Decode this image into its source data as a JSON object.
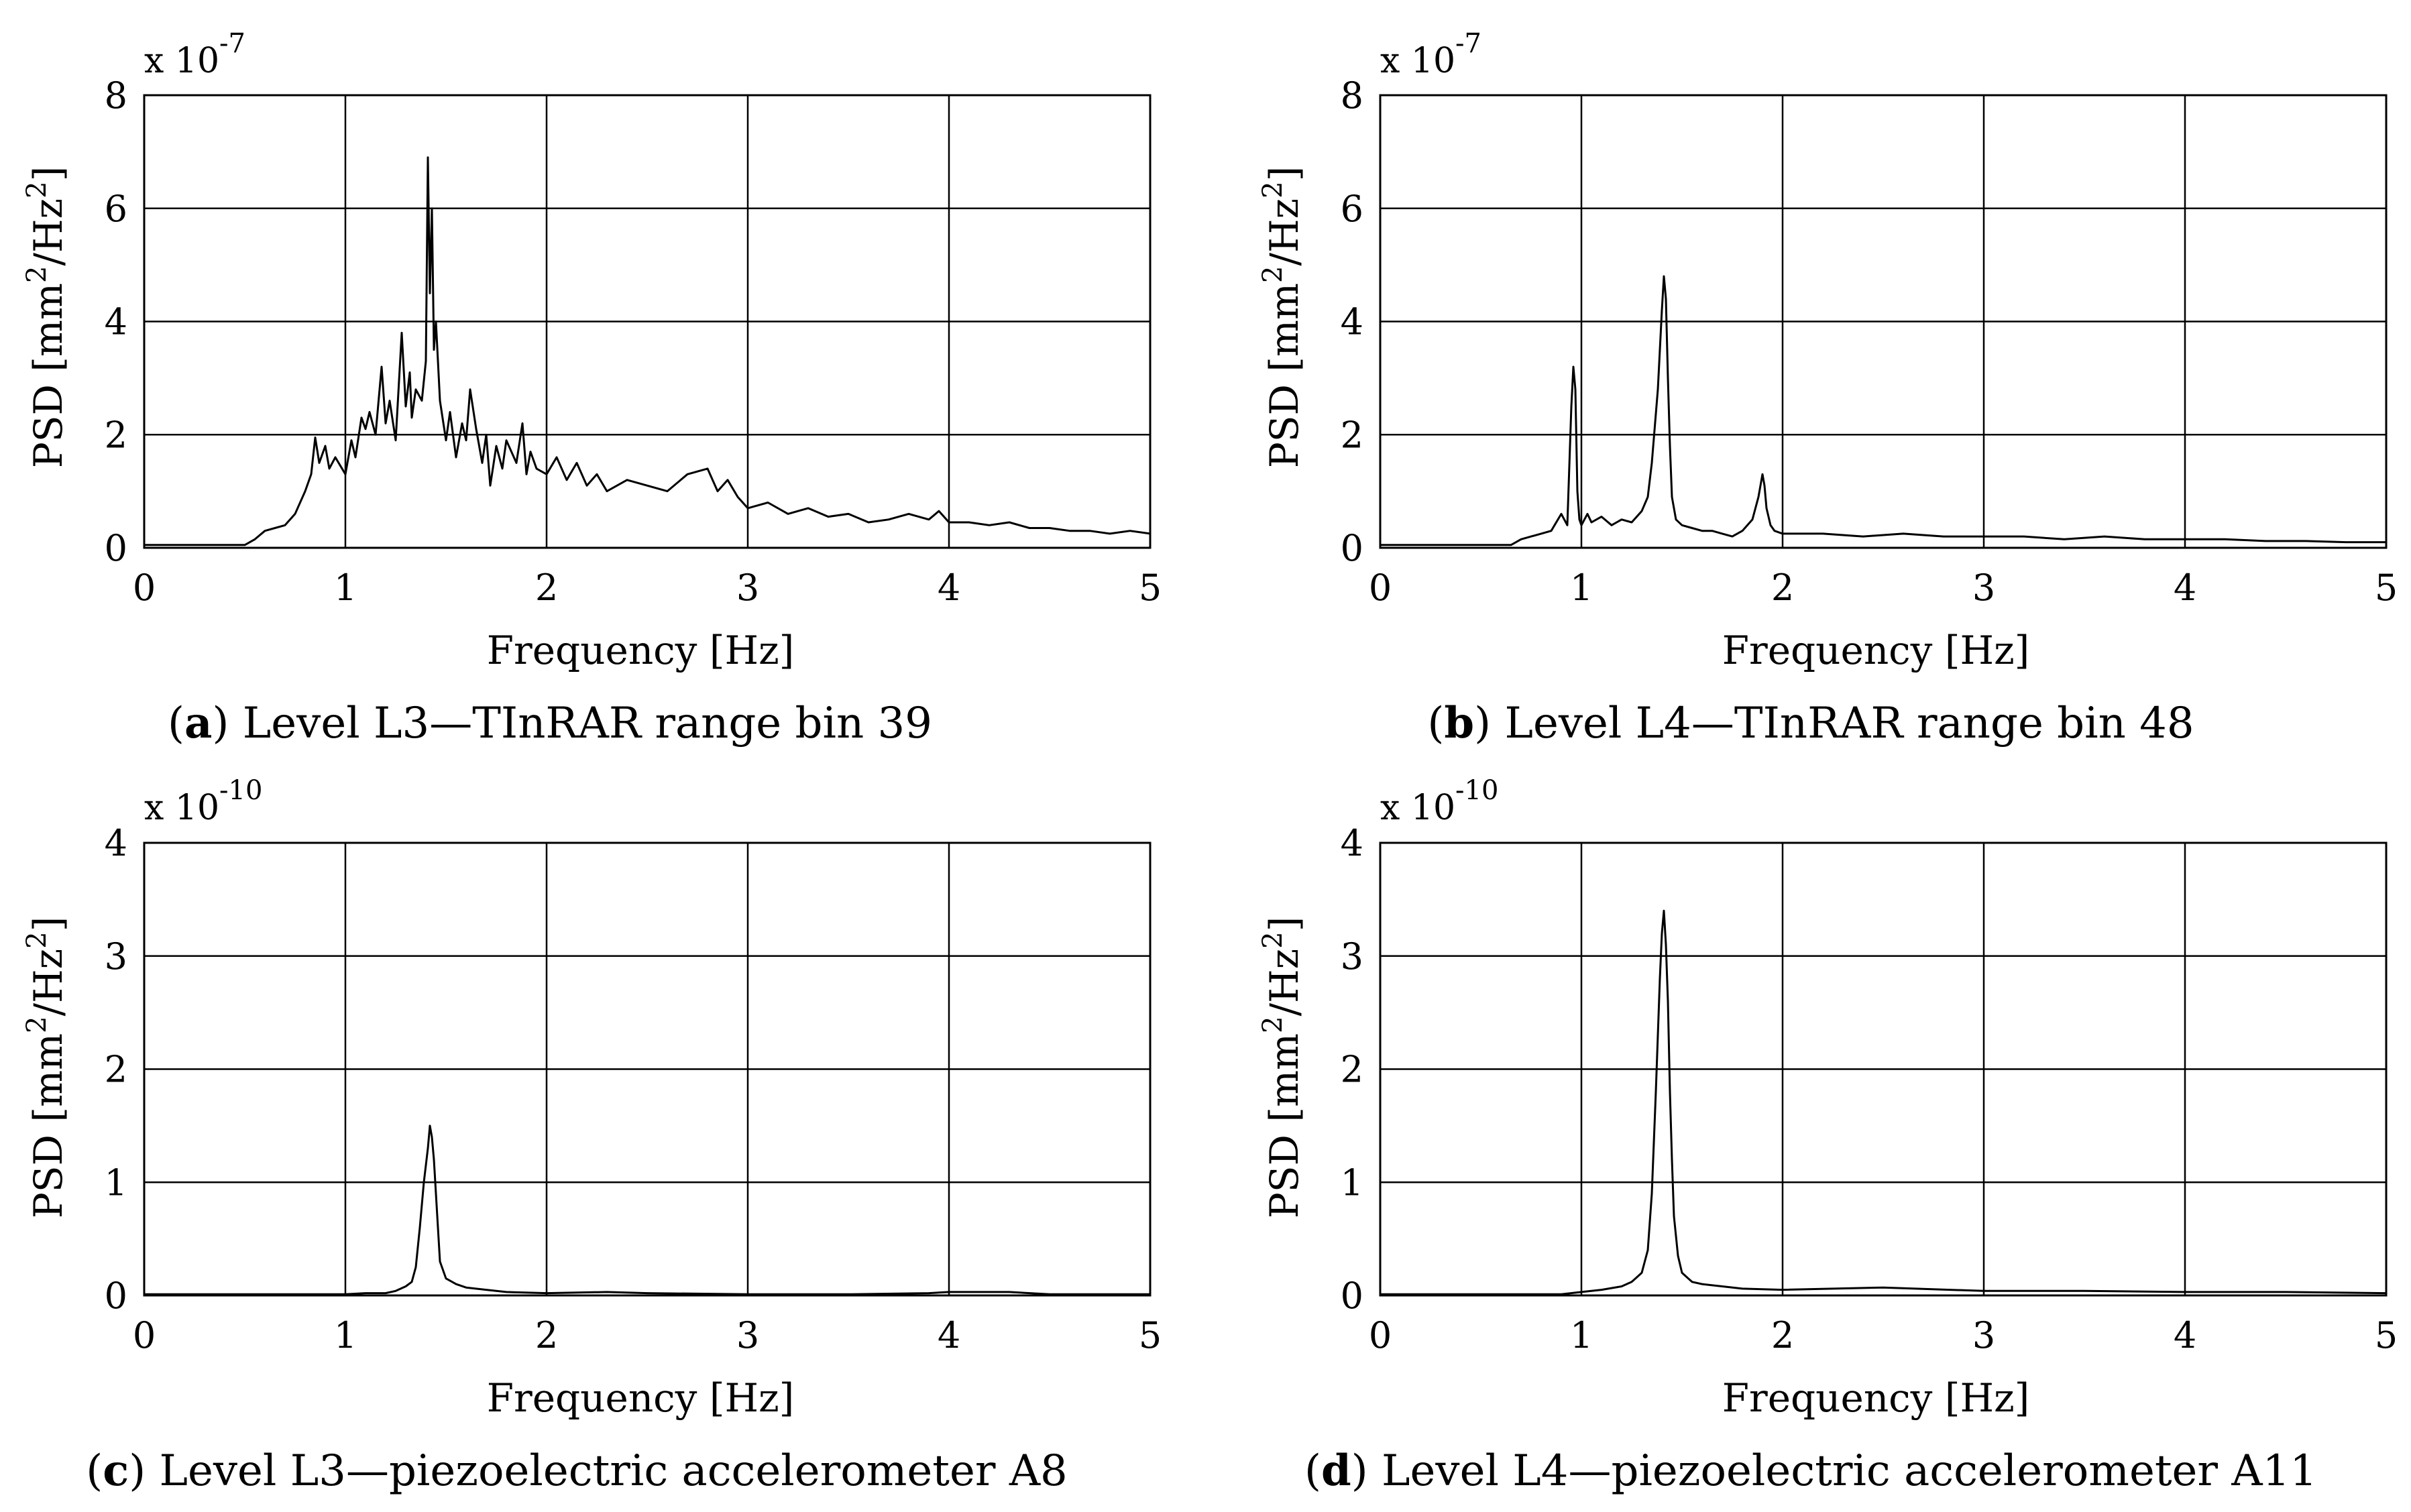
{
  "charts": [
    {
      "id": "a",
      "caption_label": "a",
      "caption_text": "Level L3—TInRAR range bin 39",
      "ylabel": "PSD [mm²/Hz²]",
      "ylabel_base": "PSD [mm",
      "ylabel_mid": "/Hz",
      "ylabel_end": "]",
      "ylabel_exp": "2",
      "xlabel": "Frequency [Hz]",
      "multiplier_base": "x 10",
      "multiplier_exp": "-7",
      "x_ticks": [
        "0",
        "1",
        "2",
        "3",
        "4",
        "5"
      ],
      "y_ticks": [
        "0",
        "2",
        "4",
        "6",
        "8"
      ]
    },
    {
      "id": "b",
      "caption_label": "b",
      "caption_text": "Level L4—TInRAR range bin 48",
      "ylabel": "PSD [mm²/Hz²]",
      "ylabel_base": "PSD [mm",
      "ylabel_mid": "/Hz",
      "ylabel_end": "]",
      "ylabel_exp": "2",
      "xlabel": "Frequency [Hz]",
      "multiplier_base": "x 10",
      "multiplier_exp": "-7",
      "x_ticks": [
        "0",
        "1",
        "2",
        "3",
        "4",
        "5"
      ],
      "y_ticks": [
        "0",
        "2",
        "4",
        "6",
        "8"
      ]
    },
    {
      "id": "c",
      "caption_label": "c",
      "caption_text": "Level L3—piezoelectric accelerometer A8",
      "ylabel": "PSD [mm²/Hz²]",
      "ylabel_base": "PSD [mm",
      "ylabel_mid": "/Hz",
      "ylabel_end": "]",
      "ylabel_exp": "2",
      "xlabel": "Frequency [Hz]",
      "multiplier_base": "x 10",
      "multiplier_exp": "-10",
      "x_ticks": [
        "0",
        "1",
        "2",
        "3",
        "4",
        "5"
      ],
      "y_ticks": [
        "0",
        "1",
        "2",
        "3",
        "4"
      ]
    },
    {
      "id": "d",
      "caption_label": "d",
      "caption_text": "Level L4—piezoelectric accelerometer A11",
      "ylabel": "PSD [mm²/Hz²]",
      "ylabel_base": "PSD [mm",
      "ylabel_mid": "/Hz",
      "ylabel_end": "]",
      "ylabel_exp": "2",
      "xlabel": "Frequency [Hz]",
      "multiplier_base": "x 10",
      "multiplier_exp": "-10",
      "x_ticks": [
        "0",
        "1",
        "2",
        "3",
        "4",
        "5"
      ],
      "y_ticks": [
        "0",
        "1",
        "2",
        "3",
        "4"
      ]
    }
  ],
  "chart_data": [
    {
      "type": "line",
      "title": "(a) Level L3—TInRAR range bin 39",
      "xlabel": "Frequency [Hz]",
      "ylabel": "PSD [mm²/Hz²] (x 10^-7)",
      "xlim": [
        0,
        5
      ],
      "ylim": [
        0,
        8
      ],
      "grid": true,
      "series": [
        {
          "name": "PSD",
          "x": [
            0,
            0.5,
            0.55,
            0.6,
            0.65,
            0.7,
            0.75,
            0.8,
            0.83,
            0.85,
            0.87,
            0.9,
            0.92,
            0.95,
            1.0,
            1.03,
            1.05,
            1.08,
            1.1,
            1.12,
            1.15,
            1.18,
            1.2,
            1.22,
            1.25,
            1.28,
            1.3,
            1.32,
            1.33,
            1.35,
            1.38,
            1.4,
            1.41,
            1.42,
            1.43,
            1.44,
            1.45,
            1.47,
            1.5,
            1.52,
            1.55,
            1.58,
            1.6,
            1.62,
            1.65,
            1.68,
            1.7,
            1.72,
            1.75,
            1.78,
            1.8,
            1.85,
            1.88,
            1.9,
            1.92,
            1.95,
            2.0,
            2.05,
            2.1,
            2.15,
            2.2,
            2.25,
            2.3,
            2.4,
            2.5,
            2.6,
            2.7,
            2.8,
            2.85,
            2.9,
            2.95,
            3.0,
            3.1,
            3.2,
            3.3,
            3.4,
            3.5,
            3.6,
            3.7,
            3.8,
            3.9,
            3.95,
            4.0,
            4.1,
            4.2,
            4.3,
            4.4,
            4.5,
            4.6,
            4.7,
            4.8,
            4.9,
            5.0
          ],
          "values": [
            0.05,
            0.05,
            0.15,
            0.3,
            0.35,
            0.4,
            0.6,
            1.0,
            1.3,
            1.95,
            1.5,
            1.8,
            1.4,
            1.6,
            1.3,
            1.9,
            1.6,
            2.3,
            2.1,
            2.4,
            2.0,
            3.2,
            2.2,
            2.6,
            1.9,
            3.8,
            2.5,
            3.1,
            2.3,
            2.8,
            2.6,
            3.3,
            6.9,
            4.5,
            6.0,
            3.5,
            4.0,
            2.6,
            1.9,
            2.4,
            1.6,
            2.2,
            1.9,
            2.8,
            2.1,
            1.5,
            2.0,
            1.1,
            1.8,
            1.4,
            1.9,
            1.5,
            2.2,
            1.3,
            1.7,
            1.4,
            1.3,
            1.6,
            1.2,
            1.5,
            1.1,
            1.3,
            1.0,
            1.2,
            1.1,
            1.0,
            1.3,
            1.4,
            1.0,
            1.2,
            0.9,
            0.7,
            0.8,
            0.6,
            0.7,
            0.55,
            0.6,
            0.45,
            0.5,
            0.6,
            0.5,
            0.65,
            0.45,
            0.45,
            0.4,
            0.45,
            0.35,
            0.35,
            0.3,
            0.3,
            0.25,
            0.3,
            0.25
          ]
        }
      ]
    },
    {
      "type": "line",
      "title": "(b) Level L4—TInRAR range bin 48",
      "xlabel": "Frequency [Hz]",
      "ylabel": "PSD [mm²/Hz²] (x 10^-7)",
      "xlim": [
        0,
        5
      ],
      "ylim": [
        0,
        8
      ],
      "grid": true,
      "series": [
        {
          "name": "PSD",
          "x": [
            0,
            0.65,
            0.7,
            0.75,
            0.8,
            0.85,
            0.9,
            0.93,
            0.95,
            0.96,
            0.97,
            0.98,
            0.99,
            1.0,
            1.03,
            1.05,
            1.1,
            1.15,
            1.2,
            1.25,
            1.3,
            1.33,
            1.35,
            1.38,
            1.4,
            1.41,
            1.42,
            1.43,
            1.44,
            1.45,
            1.47,
            1.5,
            1.55,
            1.6,
            1.65,
            1.7,
            1.75,
            1.8,
            1.85,
            1.88,
            1.9,
            1.91,
            1.92,
            1.94,
            1.96,
            2.0,
            2.2,
            2.4,
            2.6,
            2.8,
            3.0,
            3.2,
            3.4,
            3.6,
            3.8,
            4.0,
            4.2,
            4.4,
            4.6,
            4.8,
            5.0
          ],
          "values": [
            0.05,
            0.05,
            0.15,
            0.2,
            0.25,
            0.3,
            0.6,
            0.4,
            2.5,
            3.2,
            2.8,
            1.0,
            0.5,
            0.4,
            0.6,
            0.45,
            0.55,
            0.4,
            0.5,
            0.45,
            0.65,
            0.9,
            1.5,
            2.8,
            4.2,
            4.8,
            4.4,
            3.0,
            1.8,
            0.9,
            0.5,
            0.4,
            0.35,
            0.3,
            0.3,
            0.25,
            0.2,
            0.3,
            0.5,
            0.9,
            1.3,
            1.1,
            0.7,
            0.4,
            0.3,
            0.25,
            0.25,
            0.2,
            0.25,
            0.2,
            0.2,
            0.2,
            0.15,
            0.2,
            0.15,
            0.15,
            0.15,
            0.12,
            0.12,
            0.1,
            0.1
          ]
        }
      ]
    },
    {
      "type": "line",
      "title": "(c) Level L3—piezoelectric accelerometer A8",
      "xlabel": "Frequency [Hz]",
      "ylabel": "PSD [mm²/Hz²] (x 10^-10)",
      "xlim": [
        0,
        5
      ],
      "ylim": [
        0,
        4
      ],
      "grid": true,
      "series": [
        {
          "name": "PSD",
          "x": [
            0,
            1.0,
            1.1,
            1.2,
            1.25,
            1.3,
            1.33,
            1.35,
            1.37,
            1.39,
            1.41,
            1.42,
            1.43,
            1.44,
            1.45,
            1.46,
            1.47,
            1.5,
            1.55,
            1.6,
            1.7,
            1.8,
            2.0,
            2.3,
            2.5,
            3.0,
            3.5,
            3.9,
            4.0,
            4.3,
            4.5,
            5.0
          ],
          "values": [
            0.01,
            0.01,
            0.02,
            0.02,
            0.04,
            0.08,
            0.12,
            0.25,
            0.6,
            1.0,
            1.3,
            1.5,
            1.4,
            1.2,
            0.9,
            0.6,
            0.3,
            0.15,
            0.1,
            0.07,
            0.05,
            0.03,
            0.02,
            0.03,
            0.02,
            0.01,
            0.01,
            0.02,
            0.03,
            0.03,
            0.01,
            0.01
          ]
        }
      ]
    },
    {
      "type": "line",
      "title": "(d) Level L4—piezoelectric accelerometer A11",
      "xlabel": "Frequency [Hz]",
      "ylabel": "PSD [mm²/Hz²] (x 10^-10)",
      "xlim": [
        0,
        5
      ],
      "ylim": [
        0,
        4
      ],
      "grid": true,
      "series": [
        {
          "name": "PSD",
          "x": [
            0,
            0.9,
            1.0,
            1.1,
            1.2,
            1.25,
            1.3,
            1.33,
            1.35,
            1.37,
            1.39,
            1.4,
            1.41,
            1.42,
            1.43,
            1.44,
            1.45,
            1.46,
            1.48,
            1.5,
            1.55,
            1.6,
            1.7,
            1.8,
            2.0,
            2.5,
            3.0,
            3.5,
            4.0,
            4.5,
            5.0
          ],
          "values": [
            0.01,
            0.01,
            0.03,
            0.05,
            0.08,
            0.12,
            0.2,
            0.4,
            0.9,
            1.8,
            2.8,
            3.2,
            3.4,
            3.1,
            2.6,
            1.8,
            1.2,
            0.7,
            0.35,
            0.2,
            0.12,
            0.1,
            0.08,
            0.06,
            0.05,
            0.07,
            0.04,
            0.04,
            0.03,
            0.03,
            0.02
          ]
        }
      ]
    }
  ]
}
